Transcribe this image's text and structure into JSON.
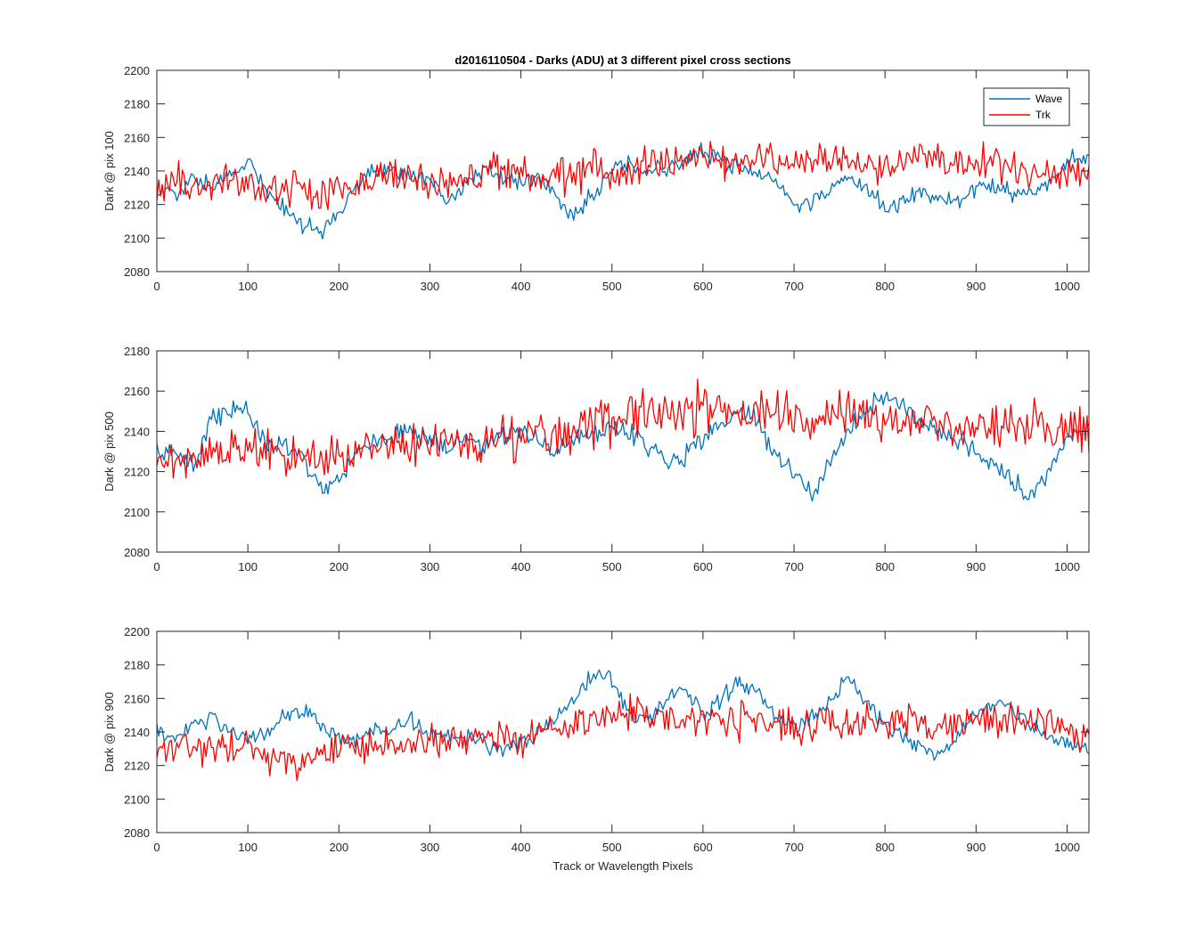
{
  "colors": {
    "wave": "#0072BD",
    "trk": "#FF0000",
    "axis": "#262626",
    "background": "#FFFFFF"
  },
  "chart_data": [
    {
      "type": "line",
      "title": "d2016110504 - Darks (ADU) at 3 different pixel cross sections",
      "xlabel": "",
      "ylabel": "Dark @ pix 100",
      "xlim": [
        0,
        1024
      ],
      "ylim": [
        2080,
        2200
      ],
      "xticks": [
        "0",
        "100",
        "200",
        "300",
        "400",
        "500",
        "600",
        "700",
        "800",
        "900",
        "1000"
      ],
      "yticks": [
        "2080",
        "2100",
        "2120",
        "2140",
        "2160",
        "2180",
        "2200"
      ],
      "legend": {
        "position": "top-right",
        "entries": [
          "Wave",
          "Trk"
        ]
      },
      "series": [
        {
          "name": "Wave",
          "color": "#0072BD",
          "x": [
            0,
            20,
            40,
            60,
            80,
            100,
            120,
            140,
            160,
            180,
            200,
            220,
            240,
            260,
            280,
            300,
            320,
            340,
            360,
            380,
            400,
            420,
            440,
            460,
            480,
            500,
            520,
            540,
            560,
            580,
            600,
            620,
            640,
            660,
            680,
            700,
            720,
            740,
            760,
            780,
            800,
            820,
            840,
            860,
            880,
            900,
            920,
            940,
            960,
            980,
            1000,
            1024
          ],
          "values": [
            2128,
            2126,
            2136,
            2130,
            2138,
            2146,
            2128,
            2118,
            2108,
            2104,
            2114,
            2130,
            2142,
            2140,
            2136,
            2134,
            2122,
            2134,
            2140,
            2136,
            2134,
            2136,
            2124,
            2112,
            2128,
            2140,
            2146,
            2138,
            2142,
            2146,
            2152,
            2148,
            2142,
            2140,
            2132,
            2120,
            2122,
            2128,
            2136,
            2132,
            2118,
            2120,
            2128,
            2124,
            2122,
            2130,
            2132,
            2126,
            2126,
            2132,
            2146,
            2150
          ]
        },
        {
          "name": "Trk",
          "color": "#FF0000",
          "x": [
            0,
            20,
            40,
            60,
            80,
            100,
            120,
            140,
            160,
            180,
            200,
            220,
            240,
            260,
            280,
            300,
            320,
            340,
            360,
            380,
            400,
            420,
            440,
            460,
            480,
            500,
            520,
            540,
            560,
            580,
            600,
            620,
            640,
            660,
            680,
            700,
            720,
            740,
            760,
            780,
            800,
            820,
            840,
            860,
            880,
            900,
            920,
            940,
            960,
            980,
            1000,
            1024
          ],
          "values": [
            2130,
            2134,
            2130,
            2134,
            2132,
            2136,
            2126,
            2130,
            2128,
            2126,
            2130,
            2132,
            2136,
            2138,
            2134,
            2130,
            2134,
            2136,
            2138,
            2140,
            2136,
            2138,
            2140,
            2138,
            2140,
            2142,
            2140,
            2144,
            2146,
            2148,
            2150,
            2144,
            2146,
            2148,
            2146,
            2144,
            2146,
            2148,
            2146,
            2144,
            2142,
            2146,
            2148,
            2144,
            2146,
            2144,
            2142,
            2140,
            2138,
            2140,
            2142,
            2136
          ]
        }
      ]
    },
    {
      "type": "line",
      "title": "",
      "xlabel": "",
      "ylabel": "Dark @ pix 500",
      "xlim": [
        0,
        1024
      ],
      "ylim": [
        2080,
        2180
      ],
      "xticks": [
        "0",
        "100",
        "200",
        "300",
        "400",
        "500",
        "600",
        "700",
        "800",
        "900",
        "1000"
      ],
      "yticks": [
        "2080",
        "2100",
        "2120",
        "2140",
        "2160",
        "2180"
      ],
      "series": [
        {
          "name": "Wave",
          "color": "#0072BD",
          "x": [
            0,
            20,
            40,
            60,
            80,
            100,
            120,
            140,
            160,
            180,
            200,
            220,
            240,
            260,
            280,
            300,
            320,
            340,
            360,
            380,
            400,
            420,
            440,
            460,
            480,
            500,
            520,
            540,
            560,
            580,
            600,
            620,
            640,
            660,
            680,
            700,
            720,
            740,
            760,
            780,
            800,
            820,
            840,
            860,
            880,
            900,
            920,
            940,
            960,
            980,
            1000,
            1024
          ],
          "values": [
            2128,
            2130,
            2124,
            2146,
            2150,
            2152,
            2134,
            2134,
            2128,
            2110,
            2116,
            2130,
            2136,
            2138,
            2140,
            2136,
            2132,
            2136,
            2134,
            2138,
            2140,
            2134,
            2130,
            2136,
            2138,
            2144,
            2140,
            2132,
            2124,
            2128,
            2136,
            2144,
            2150,
            2144,
            2128,
            2120,
            2110,
            2124,
            2140,
            2150,
            2158,
            2154,
            2144,
            2140,
            2136,
            2130,
            2124,
            2116,
            2106,
            2120,
            2138,
            2142
          ]
        },
        {
          "name": "Trk",
          "color": "#FF0000",
          "x": [
            0,
            20,
            40,
            60,
            80,
            100,
            120,
            140,
            160,
            180,
            200,
            220,
            240,
            260,
            280,
            300,
            320,
            340,
            360,
            380,
            400,
            420,
            440,
            460,
            480,
            500,
            520,
            540,
            560,
            580,
            600,
            620,
            640,
            660,
            680,
            700,
            720,
            740,
            760,
            780,
            800,
            820,
            840,
            860,
            880,
            900,
            920,
            940,
            960,
            980,
            1000,
            1024
          ],
          "values": [
            2128,
            2130,
            2126,
            2130,
            2128,
            2132,
            2130,
            2128,
            2126,
            2124,
            2126,
            2130,
            2128,
            2132,
            2134,
            2132,
            2136,
            2134,
            2136,
            2138,
            2136,
            2140,
            2138,
            2140,
            2142,
            2146,
            2150,
            2146,
            2148,
            2150,
            2152,
            2148,
            2146,
            2150,
            2148,
            2144,
            2146,
            2148,
            2150,
            2148,
            2146,
            2144,
            2146,
            2142,
            2144,
            2142,
            2140,
            2142,
            2144,
            2140,
            2142,
            2140
          ]
        }
      ]
    },
    {
      "type": "line",
      "title": "",
      "xlabel": "Track or Wavelength Pixels",
      "ylabel": "Dark @ pix 900",
      "xlim": [
        0,
        1024
      ],
      "ylim": [
        2080,
        2200
      ],
      "xticks": [
        "0",
        "100",
        "200",
        "300",
        "400",
        "500",
        "600",
        "700",
        "800",
        "900",
        "1000"
      ],
      "yticks": [
        "2080",
        "2100",
        "2120",
        "2140",
        "2160",
        "2180",
        "2200"
      ],
      "series": [
        {
          "name": "Wave",
          "color": "#0072BD",
          "x": [
            0,
            20,
            40,
            60,
            80,
            100,
            120,
            140,
            160,
            180,
            200,
            220,
            240,
            260,
            280,
            300,
            320,
            340,
            360,
            380,
            400,
            420,
            440,
            460,
            480,
            500,
            520,
            540,
            560,
            580,
            600,
            620,
            640,
            660,
            680,
            700,
            720,
            740,
            760,
            780,
            800,
            820,
            840,
            860,
            880,
            900,
            920,
            940,
            960,
            980,
            1000,
            1024
          ],
          "values": [
            2140,
            2136,
            2144,
            2150,
            2140,
            2136,
            2140,
            2150,
            2152,
            2144,
            2134,
            2136,
            2140,
            2140,
            2148,
            2140,
            2136,
            2138,
            2134,
            2130,
            2134,
            2140,
            2150,
            2160,
            2174,
            2170,
            2150,
            2146,
            2160,
            2168,
            2150,
            2160,
            2170,
            2164,
            2148,
            2144,
            2150,
            2160,
            2172,
            2156,
            2144,
            2140,
            2130,
            2126,
            2138,
            2150,
            2158,
            2154,
            2144,
            2136,
            2132,
            2130
          ]
        },
        {
          "name": "Trk",
          "color": "#FF0000",
          "x": [
            0,
            20,
            40,
            60,
            80,
            100,
            120,
            140,
            160,
            180,
            200,
            220,
            240,
            260,
            280,
            300,
            320,
            340,
            360,
            380,
            400,
            420,
            440,
            460,
            480,
            500,
            520,
            540,
            560,
            580,
            600,
            620,
            640,
            660,
            680,
            700,
            720,
            740,
            760,
            780,
            800,
            820,
            840,
            860,
            880,
            900,
            920,
            940,
            960,
            980,
            1000,
            1024
          ],
          "values": [
            2130,
            2134,
            2132,
            2128,
            2130,
            2128,
            2126,
            2122,
            2120,
            2124,
            2130,
            2132,
            2134,
            2130,
            2132,
            2134,
            2136,
            2134,
            2136,
            2138,
            2136,
            2140,
            2142,
            2144,
            2146,
            2150,
            2154,
            2150,
            2148,
            2146,
            2150,
            2148,
            2146,
            2148,
            2146,
            2144,
            2146,
            2148,
            2146,
            2148,
            2146,
            2148,
            2146,
            2144,
            2146,
            2148,
            2146,
            2148,
            2146,
            2144,
            2142,
            2136
          ]
        }
      ]
    }
  ]
}
